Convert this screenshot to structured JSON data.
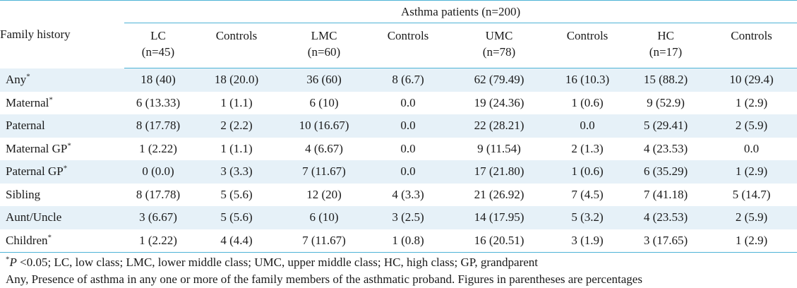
{
  "table": {
    "group_header": "Asthma patients (n=200)",
    "row_header": "Family history",
    "columns": [
      {
        "name": "LC",
        "n": "(n=45)"
      },
      {
        "name": "Controls",
        "n": ""
      },
      {
        "name": "LMC",
        "n": "(n=60)"
      },
      {
        "name": "Controls",
        "n": ""
      },
      {
        "name": "UMC",
        "n": "(n=78)"
      },
      {
        "name": "Controls",
        "n": ""
      },
      {
        "name": "HC",
        "n": "(n=17)"
      },
      {
        "name": "Controls",
        "n": ""
      }
    ],
    "rows": [
      {
        "label": "Any",
        "mark": "*",
        "cells": [
          "18 (40)",
          "18 (20.0)",
          "36 (60)",
          "8 (6.7)",
          "62 (79.49)",
          "16 (10.3)",
          "15 (88.2)",
          "10 (29.4)"
        ]
      },
      {
        "label": "Maternal",
        "mark": "*",
        "cells": [
          "6 (13.33)",
          "1 (1.1)",
          "6 (10)",
          "0.0",
          "19 (24.36)",
          "1 (0.6)",
          "9 (52.9)",
          "1 (2.9)"
        ]
      },
      {
        "label": "Paternal",
        "mark": "",
        "cells": [
          "8 (17.78)",
          "2 (2.2)",
          "10 (16.67)",
          "0.0",
          "22 (28.21)",
          "0.0",
          "5 (29.41)",
          "2 (5.9)"
        ]
      },
      {
        "label": "Maternal GP",
        "mark": "*",
        "cells": [
          "1 (2.22)",
          "1 (1.1)",
          "4 (6.67)",
          "0.0",
          "9 (11.54)",
          "2 (1.3)",
          "4 (23.53)",
          "0.0"
        ]
      },
      {
        "label": "Paternal GP",
        "mark": "*",
        "cells": [
          "0 (0.0)",
          "3 (3.3)",
          "7 (11.67)",
          "0.0",
          "17 (21.80)",
          "1 (0.6)",
          "6 (35.29)",
          "1 (2.9)"
        ]
      },
      {
        "label": "Sibling",
        "mark": "",
        "cells": [
          "8 (17.78)",
          "5 (5.6)",
          "12 (20)",
          "4 (3.3)",
          "21 (26.92)",
          "7 (4.5)",
          "7 (41.18)",
          "5 (14.7)"
        ]
      },
      {
        "label": "Aunt/Uncle",
        "mark": "",
        "cells": [
          "3 (6.67)",
          "5 (5.6)",
          "6 (10)",
          "3 (2.5)",
          "14 (17.95)",
          "5 (3.2)",
          "4 (23.53)",
          "2 (5.9)"
        ]
      },
      {
        "label": "Children",
        "mark": "*",
        "cells": [
          "1 (2.22)",
          "4 (4.4)",
          "7 (11.67)",
          "1 (0.8)",
          "16 (20.51)",
          "3 (1.9)",
          "3 (17.65)",
          "1 (2.9)"
        ]
      }
    ]
  },
  "footnotes": {
    "line1_mark": "*",
    "line1_p": "P",
    "line1_text": " <0.05; LC, low class; LMC, lower middle class; UMC, upper middle class; HC, high class; GP, grandparent",
    "line2": "Any, Presence of asthma in any one or more of the family members of the asthmatic proband. Figures in parentheses are percentages"
  },
  "colors": {
    "rule": "#4db3d6",
    "stripe": "#e6f1f8"
  }
}
